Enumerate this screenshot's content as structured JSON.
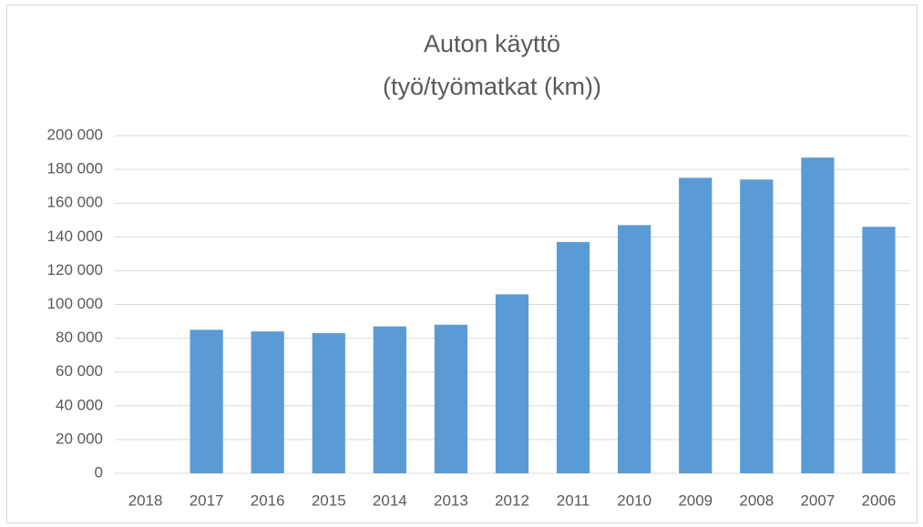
{
  "chart_data": {
    "type": "bar",
    "title": [
      "Auton käyttö",
      "(työ/työmatkat (km))"
    ],
    "categories": [
      "2018",
      "2017",
      "2016",
      "2015",
      "2014",
      "2013",
      "2012",
      "2011",
      "2010",
      "2009",
      "2008",
      "2007",
      "2006"
    ],
    "values": [
      null,
      85000,
      84000,
      83000,
      87000,
      88000,
      106000,
      137000,
      147000,
      175000,
      174000,
      187000,
      146000
    ],
    "color": "#5b9bd5",
    "ylim": [
      0,
      200000
    ],
    "yticks": [
      0,
      {
        "value": 20000,
        "label": "20 000"
      },
      {
        "value": 40000,
        "label": "40 000"
      },
      {
        "value": 60000,
        "label": "60 000"
      },
      {
        "value": 80000,
        "label": "80 000"
      },
      {
        "value": 100000,
        "label": "100 000"
      },
      {
        "value": 120000,
        "label": "120 000"
      },
      {
        "value": 140000,
        "label": "140 000"
      },
      {
        "value": 160000,
        "label": "160 000"
      },
      {
        "value": 180000,
        "label": "180 000"
      },
      {
        "value": 200000,
        "label": "200 000"
      }
    ],
    "grid": true
  }
}
